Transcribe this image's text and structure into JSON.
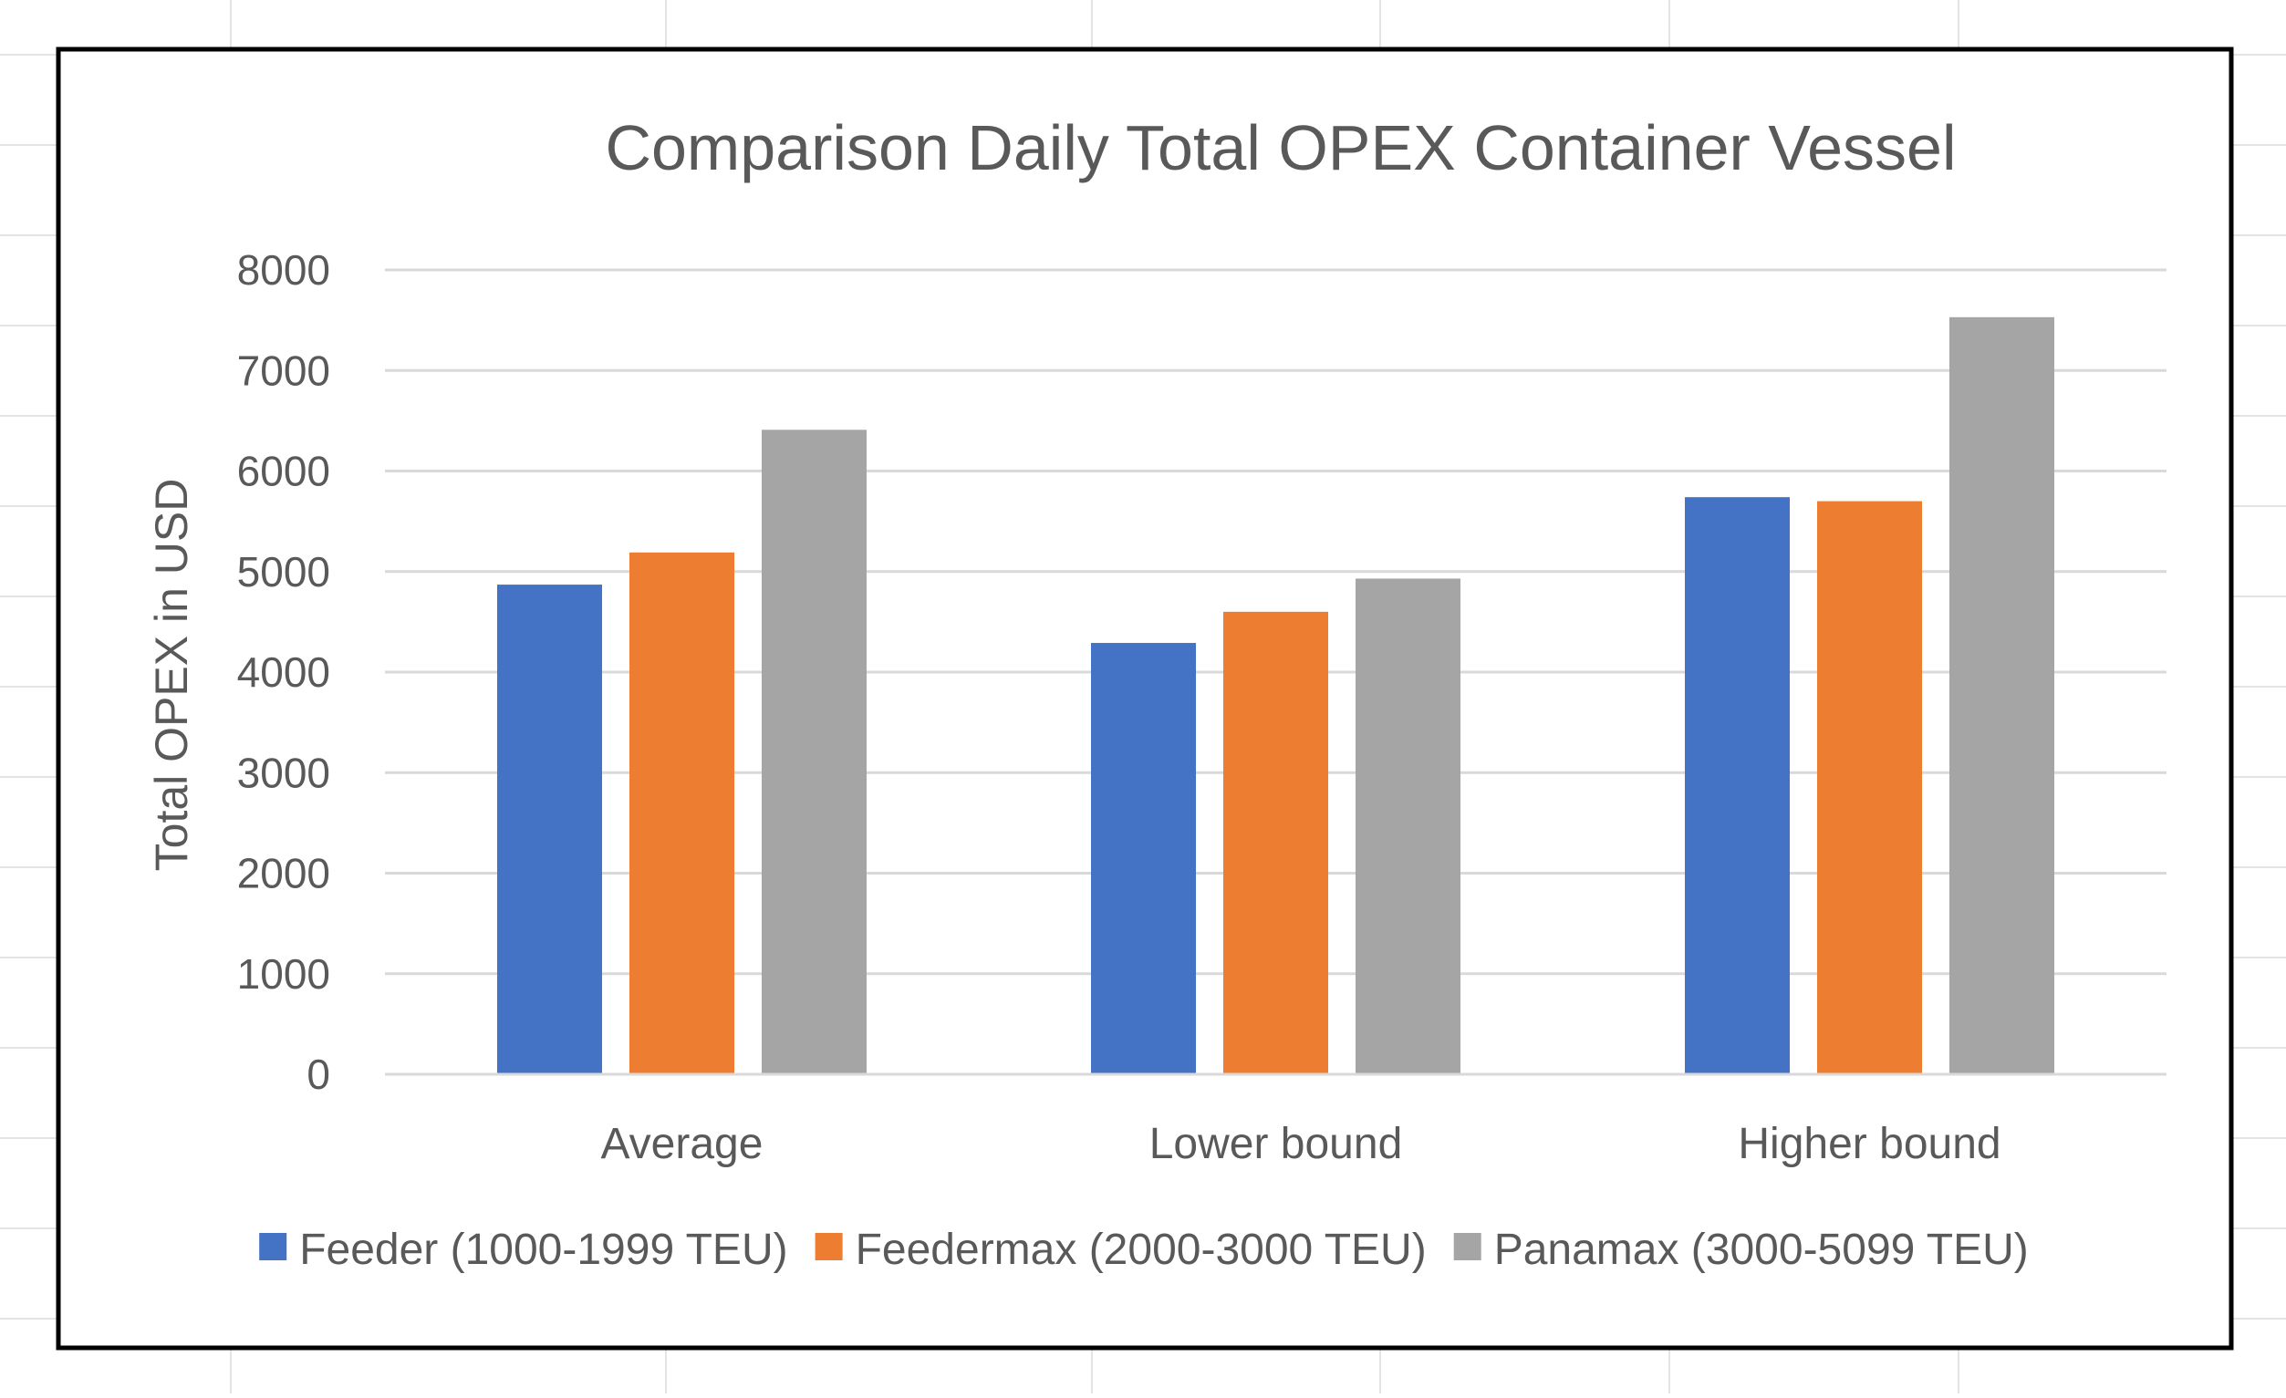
{
  "chart_data": {
    "type": "bar",
    "title": "Comparison Daily Total OPEX Container Vessel",
    "xlabel": "",
    "ylabel": "Total OPEX in USD",
    "ylim": [
      0,
      8000
    ],
    "yticks": [
      0,
      1000,
      2000,
      3000,
      4000,
      5000,
      6000,
      7000,
      8000
    ],
    "grid": true,
    "legend_position": "bottom",
    "categories": [
      "Average",
      "Lower bound",
      "Higher bound"
    ],
    "series": [
      {
        "name": "Feeder (1000-1999 TEU)",
        "color": "#4472c4",
        "values": [
          4870,
          4290,
          5740
        ]
      },
      {
        "name": "Feedermax (2000-3000 TEU)",
        "color": "#ed7d31",
        "values": [
          5190,
          4600,
          5700
        ]
      },
      {
        "name": "Panamax (3000-5099 TEU)",
        "color": "#a5a5a5",
        "values": [
          6410,
          4930,
          7530
        ]
      }
    ]
  }
}
